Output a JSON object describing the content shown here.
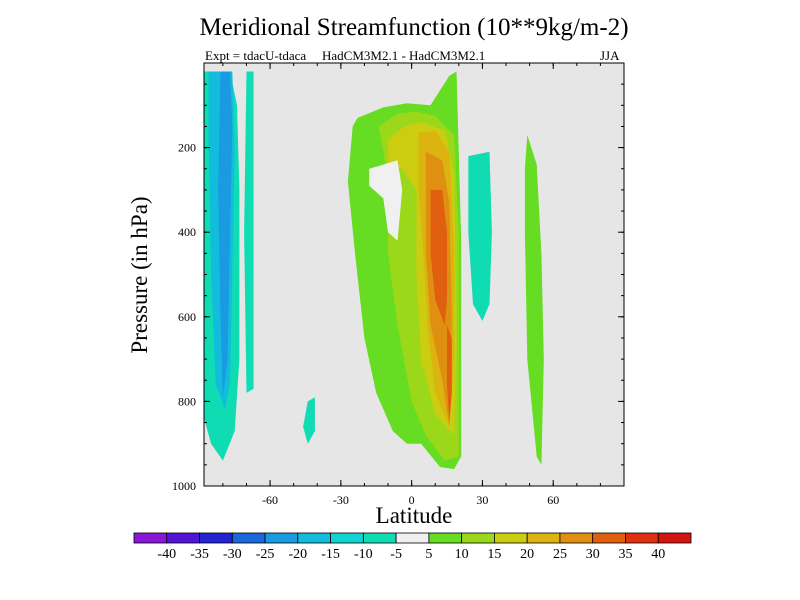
{
  "chart_data": {
    "type": "heatmap",
    "title": "Meridional Streamfunction (10**9kg/m-2)",
    "subtitle_left": "Expt = tdacU-tdaca",
    "subtitle_center": "HadCM3M2.1 - HadCM3M2.1",
    "subtitle_right": "JJA",
    "xlabel": "Latitude",
    "ylabel": "Pressure (in hPa)",
    "xlim": [
      -88,
      90
    ],
    "ylim": [
      1000,
      0
    ],
    "x_ticks": [
      -60,
      -30,
      0,
      30,
      60
    ],
    "x_tick_labels": [
      "-60",
      "-30",
      "0",
      "30",
      "60"
    ],
    "y_ticks": [
      200,
      400,
      600,
      800,
      1000
    ],
    "y_tick_labels": [
      "200",
      "400",
      "600",
      "800",
      "1000"
    ],
    "background_color": "#e6e6e6",
    "colorbar": {
      "labels": [
        "-40",
        "-35",
        "-30",
        "-25",
        "-20",
        "-15",
        "-10",
        "-5",
        "5",
        "10",
        "15",
        "20",
        "25",
        "30",
        "35",
        "40"
      ],
      "colors": [
        "#8a18d8",
        "#5414d8",
        "#2424d4",
        "#1a66dc",
        "#1a9ae0",
        "#12bcdc",
        "#10d4d2",
        "#10dcb4",
        "#f0f0f0",
        "#66dc22",
        "#9cd81a",
        "#cccc10",
        "#dcb410",
        "#e09010",
        "#e06010",
        "#e03010",
        "#d41410"
      ]
    },
    "regions": [
      {
        "level": "-10",
        "color": "#10dcb4",
        "points": [
          [
            -88,
            20
          ],
          [
            -77,
            20
          ],
          [
            -74,
            100
          ],
          [
            -73,
            300
          ],
          [
            -73,
            700
          ],
          [
            -75,
            870
          ],
          [
            -80,
            940
          ],
          [
            -85,
            900
          ],
          [
            -88,
            840
          ]
        ]
      },
      {
        "level": "-15",
        "color": "#12bcdc",
        "points": [
          [
            -86,
            20
          ],
          [
            -76,
            20
          ],
          [
            -75,
            200
          ],
          [
            -76,
            500
          ],
          [
            -77,
            750
          ],
          [
            -79,
            820
          ],
          [
            -83,
            760
          ],
          [
            -85,
            500
          ],
          [
            -86,
            200
          ]
        ]
      },
      {
        "level": "-20",
        "color": "#1a9ae0",
        "points": [
          [
            -81,
            20
          ],
          [
            -77,
            20
          ],
          [
            -76,
            150
          ],
          [
            -77,
            400
          ],
          [
            -78,
            700
          ],
          [
            -80,
            790
          ],
          [
            -81,
            600
          ],
          [
            -82,
            300
          ]
        ]
      },
      {
        "level": "-10",
        "color": "#10dcb4",
        "points": [
          [
            -70,
            20
          ],
          [
            -67,
            20
          ],
          [
            -67,
            300
          ],
          [
            -67,
            770
          ],
          [
            -70,
            780
          ],
          [
            -71,
            400
          ]
        ]
      },
      {
        "level": "-10",
        "color": "#10dcb4",
        "points": [
          [
            -44,
            800
          ],
          [
            -41,
            790
          ],
          [
            -41,
            870
          ],
          [
            -44,
            900
          ],
          [
            -46,
            860
          ]
        ]
      },
      {
        "level": "-10",
        "color": "#10dcb4",
        "points": [
          [
            24,
            220
          ],
          [
            33,
            210
          ],
          [
            34,
            400
          ],
          [
            33,
            570
          ],
          [
            30,
            610
          ],
          [
            26,
            570
          ],
          [
            24,
            400
          ]
        ]
      },
      {
        "level": "5",
        "color": "#66dc22",
        "points": [
          [
            -23,
            130
          ],
          [
            -12,
            105
          ],
          [
            -2,
            95
          ],
          [
            8,
            100
          ],
          [
            16,
            30
          ],
          [
            19,
            20
          ],
          [
            21,
            420
          ],
          [
            21,
            930
          ],
          [
            18,
            960
          ],
          [
            12,
            955
          ],
          [
            4,
            900
          ],
          [
            -2,
            900
          ],
          [
            -8,
            870
          ],
          [
            -15,
            780
          ],
          [
            -20,
            650
          ],
          [
            -24,
            450
          ],
          [
            -27,
            280
          ],
          [
            -25,
            150
          ]
        ]
      },
      {
        "level": "5",
        "color": "#66dc22",
        "points": [
          [
            49,
            170
          ],
          [
            53,
            240
          ],
          [
            55,
            450
          ],
          [
            56,
            700
          ],
          [
            55,
            950
          ],
          [
            53,
            930
          ],
          [
            49,
            700
          ],
          [
            48,
            400
          ],
          [
            48,
            250
          ]
        ]
      },
      {
        "level": "10",
        "color": "#9cd81a",
        "points": [
          [
            -14,
            150
          ],
          [
            -6,
            120
          ],
          [
            2,
            115
          ],
          [
            10,
            125
          ],
          [
            18,
            170
          ],
          [
            20,
            400
          ],
          [
            20,
            930
          ],
          [
            14,
            940
          ],
          [
            6,
            880
          ],
          [
            0,
            800
          ],
          [
            -6,
            620
          ],
          [
            -10,
            450
          ],
          [
            -10,
            270
          ]
        ]
      },
      {
        "level": "15",
        "color": "#cccc10",
        "points": [
          [
            -10,
            180
          ],
          [
            -3,
            150
          ],
          [
            4,
            140
          ],
          [
            14,
            160
          ],
          [
            18,
            260
          ],
          [
            19,
            650
          ],
          [
            18,
            880
          ],
          [
            10,
            830
          ],
          [
            4,
            700
          ],
          [
            2,
            500
          ],
          [
            2,
            300
          ],
          [
            -4,
            250
          ],
          [
            -10,
            240
          ]
        ]
      },
      {
        "level": "20",
        "color": "#dcb410",
        "points": [
          [
            3,
            165
          ],
          [
            10,
            160
          ],
          [
            16,
            210
          ],
          [
            18,
            450
          ],
          [
            18,
            700
          ],
          [
            16,
            860
          ],
          [
            10,
            780
          ],
          [
            7,
            640
          ],
          [
            5,
            450
          ],
          [
            3,
            300
          ]
        ]
      },
      {
        "level": "25",
        "color": "#e09010",
        "points": [
          [
            6,
            210
          ],
          [
            13,
            230
          ],
          [
            16,
            330
          ],
          [
            17,
            600
          ],
          [
            16,
            860
          ],
          [
            13,
            750
          ],
          [
            8,
            620
          ],
          [
            6,
            450
          ]
        ]
      },
      {
        "level": "30",
        "color": "#e06010",
        "points": [
          [
            8,
            300
          ],
          [
            13,
            300
          ],
          [
            15,
            400
          ],
          [
            15,
            560
          ],
          [
            14,
            620
          ],
          [
            10,
            560
          ],
          [
            8,
            450
          ]
        ]
      },
      {
        "level": "30",
        "color": "#e06010",
        "points": [
          [
            15,
            620
          ],
          [
            17,
            650
          ],
          [
            17,
            780
          ],
          [
            16,
            850
          ],
          [
            15,
            760
          ]
        ]
      },
      {
        "level": "-5",
        "color": "#f0f0f0",
        "points": [
          [
            -18,
            250
          ],
          [
            -6,
            230
          ],
          [
            -4,
            300
          ],
          [
            -6,
            420
          ],
          [
            -10,
            400
          ],
          [
            -12,
            320
          ],
          [
            -18,
            290
          ]
        ]
      }
    ]
  }
}
